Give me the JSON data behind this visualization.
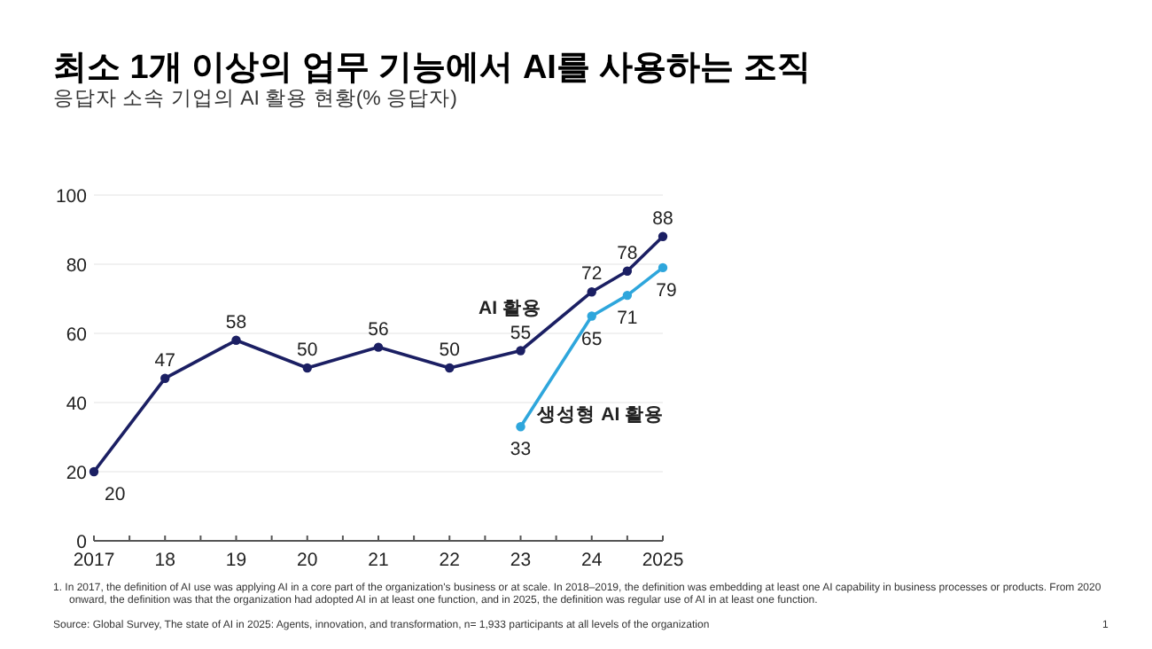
{
  "chart_data": {
    "type": "line",
    "title": "최소 1개 이상의 업무 기능에서 AI를 사용하는 조직",
    "subtitle": "응답자 소속 기업의 AI 활용 현황(% 응답자)",
    "xlim": [
      2017,
      2025
    ],
    "xticks": [
      {
        "value": 2017,
        "label": "2017"
      },
      {
        "value": 2017.5,
        "label": null
      },
      {
        "value": 2018,
        "label": "18"
      },
      {
        "value": 2018.5,
        "label": null
      },
      {
        "value": 2019,
        "label": "19"
      },
      {
        "value": 2019.5,
        "label": null
      },
      {
        "value": 2020,
        "label": "20"
      },
      {
        "value": 2020.5,
        "label": null
      },
      {
        "value": 2021,
        "label": "21"
      },
      {
        "value": 2021.5,
        "label": null
      },
      {
        "value": 2022,
        "label": "22"
      },
      {
        "value": 2022.5,
        "label": null
      },
      {
        "value": 2023,
        "label": "23"
      },
      {
        "value": 2023.5,
        "label": null
      },
      {
        "value": 2024,
        "label": "24"
      },
      {
        "value": 2024.5,
        "label": null
      },
      {
        "value": 2025,
        "label": "2025"
      }
    ],
    "ylim": [
      0,
      100
    ],
    "yticks": [
      0,
      20,
      40,
      60,
      80,
      100
    ],
    "grid": "y",
    "marker": "circle",
    "line_style": "solid",
    "data_labels": true,
    "series": [
      {
        "name": "AI 활용",
        "color": "#1b1f63",
        "x": [
          2017,
          2018,
          2019,
          2020,
          2021,
          2022,
          2023,
          2024,
          2024.5,
          2025
        ],
        "values": [
          20,
          47,
          58,
          50,
          56,
          50,
          55,
          72,
          78,
          88
        ]
      },
      {
        "name": "생성형 AI 활용",
        "color": "#2ea6dc",
        "x": [
          2023,
          2024,
          2024.5,
          2025
        ],
        "values": [
          33,
          65,
          71,
          79
        ]
      }
    ],
    "annotations": [
      "1. In 2017, the definition of AI use was applying AI in a core part of the organization's business or at scale. In 2018–2019, the definition was embedding at least one AI capability in business processes or products. From 2020 onward, the definition was that the organization had adopted AI in at least one function, and in 2025, the definition was regular use of AI in at least one function.",
      "Source: Global Survey, The state of AI in 2025: Agents, innovation, and transformation, n= 1,933  participants at all levels of the organization",
      "1"
    ]
  }
}
